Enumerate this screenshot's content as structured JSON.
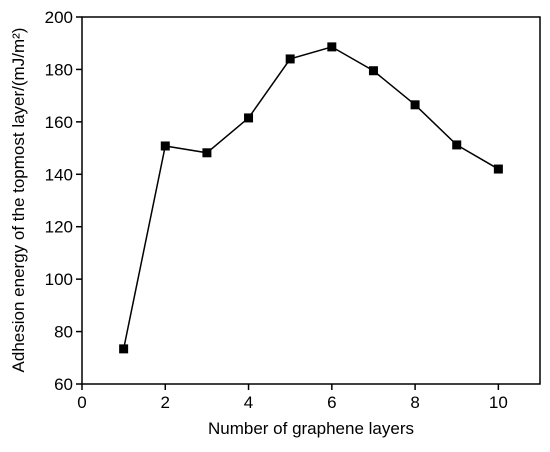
{
  "chart_data": {
    "type": "line",
    "x_label": "Number of graphene layers",
    "y_label": "Adhesion energy of the topmost layer/(mJ/m²)",
    "x": [
      1,
      2,
      3,
      4,
      5,
      6,
      7,
      8,
      9,
      10
    ],
    "series": [
      {
        "name": null,
        "color": "#000000",
        "values": [
          73.4,
          150.8,
          148.2,
          161.5,
          184,
          188.6,
          179.5,
          166.5,
          151.2,
          142
        ]
      }
    ],
    "xlim": [
      0,
      11
    ],
    "xticks": [
      0,
      2,
      4,
      6,
      8,
      10
    ],
    "ylim": [
      60,
      200
    ],
    "yticks": [
      60,
      80,
      100,
      120,
      140,
      160,
      180,
      200
    ],
    "grid": false
  }
}
